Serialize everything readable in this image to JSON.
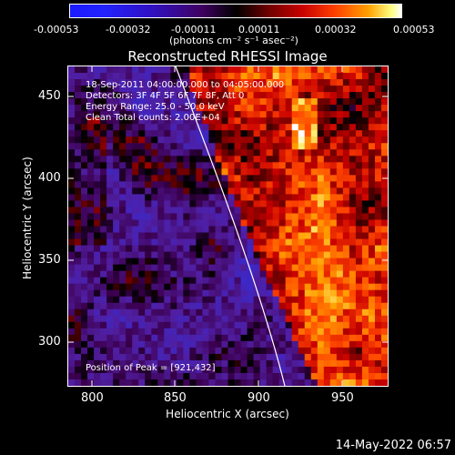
{
  "colorbar": {
    "tick_labels": [
      "-0.00053",
      "-0.00032",
      "-0.00011",
      "0.00011",
      "0.00032",
      "0.00053"
    ],
    "unit_label": "(photons cm⁻² s⁻¹ asec⁻²)"
  },
  "title": "Reconstructed RHESSI Image",
  "annotations": {
    "time_range": "18-Sep-2011 04:00:00.000 to 04:05:00.000",
    "detectors": "Detectors: 3F 4F 5F 6F 7F 8F, Att 0",
    "energy": "Energy Range: 25.0 - 50.0 keV",
    "method": "Clean     Total counts: 2.00E+04",
    "peak": "Position of Peak = [921,432]"
  },
  "axes": {
    "xlabel": "Heliocentric X (arcsec)",
    "ylabel": "Heliocentric Y (arcsec)",
    "x_ticks": [
      "800",
      "850",
      "900",
      "950"
    ],
    "y_ticks": [
      "300",
      "350",
      "400",
      "450"
    ]
  },
  "datestamp": "14-May-2022 06:57",
  "colors": {
    "limb_line": "#ffffff",
    "axis": "#ffffff"
  }
}
